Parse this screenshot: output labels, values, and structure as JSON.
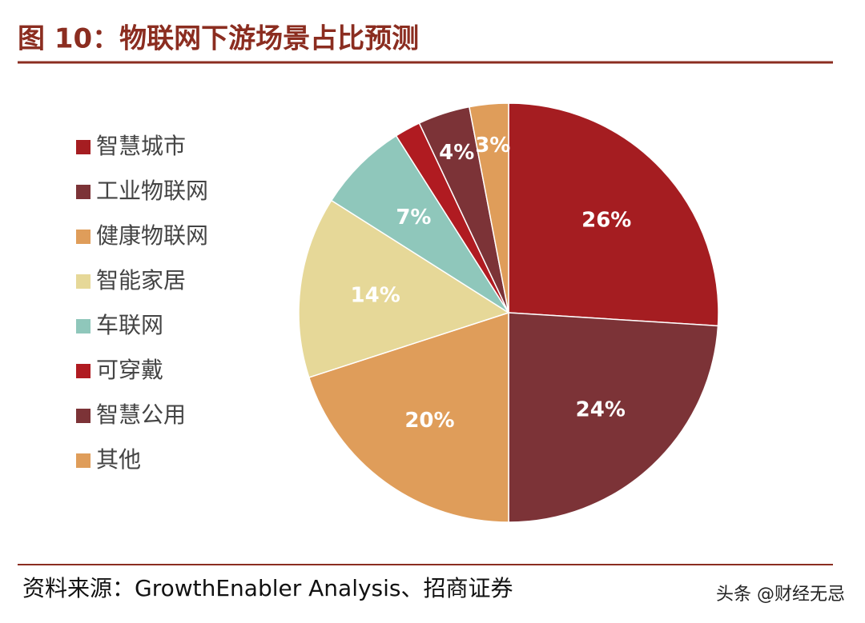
{
  "chart_data": {
    "type": "pie",
    "title": "图 10：物联网下游场景占比预测",
    "categories": [
      "智慧城市",
      "工业物联网",
      "健康物联网",
      "智能家居",
      "车联网",
      "可穿戴",
      "智慧公用",
      "其他"
    ],
    "values": [
      26,
      24,
      20,
      14,
      7,
      2,
      4,
      3
    ],
    "value_labels": [
      "26%",
      "24%",
      "20%",
      "14%",
      "7%",
      null,
      "4%",
      "3%"
    ],
    "colors": [
      "#a51d21",
      "#7c3337",
      "#df9d5a",
      "#e6d898",
      "#8fc7bb",
      "#b01b21",
      "#7c3337",
      "#df9d5a"
    ],
    "legend": "left",
    "source": "资料来源：GrowthEnabler Analysis、招商证券",
    "watermark": "头条 @财经无忌"
  }
}
